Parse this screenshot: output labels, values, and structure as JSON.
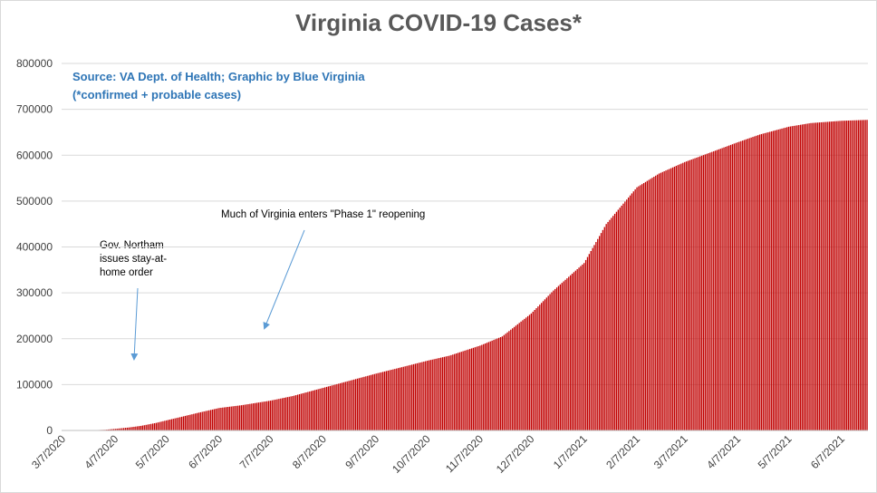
{
  "chart_data": {
    "type": "bar",
    "title": "Virginia COVID-19 Cases*",
    "source": "Source: VA Dept. of Health; Graphic by Blue Virginia",
    "note": "(*confirmed + probable cases)",
    "xlabel": "",
    "ylabel": "",
    "ylim": [
      0,
      800000
    ],
    "yticks": [
      0,
      100000,
      200000,
      300000,
      400000,
      500000,
      600000,
      700000,
      800000
    ],
    "xticks": [
      "3/7/2020",
      "4/7/2020",
      "5/7/2020",
      "6/7/2020",
      "7/7/2020",
      "8/7/2020",
      "9/7/2020",
      "10/7/2020",
      "11/7/2020",
      "12/7/2020",
      "1/7/2021",
      "2/7/2021",
      "3/7/2021",
      "4/7/2021",
      "5/7/2021",
      "6/7/2021"
    ],
    "x_start": "3/7/2020",
    "x_end": "6/22/2021",
    "grid": true,
    "legend": "none",
    "bar_color": "#c00000",
    "gap_color": "#ffffff",
    "series_points": [
      {
        "date": "3/7/2020",
        "value": 0
      },
      {
        "date": "3/20/2020",
        "value": 100
      },
      {
        "date": "4/1/2020",
        "value": 1500
      },
      {
        "date": "4/7/2020",
        "value": 3500
      },
      {
        "date": "4/15/2020",
        "value": 6500
      },
      {
        "date": "4/22/2020",
        "value": 10000
      },
      {
        "date": "5/1/2020",
        "value": 16500
      },
      {
        "date": "5/7/2020",
        "value": 22000
      },
      {
        "date": "5/15/2020",
        "value": 29000
      },
      {
        "date": "5/25/2020",
        "value": 38000
      },
      {
        "date": "6/7/2020",
        "value": 49000
      },
      {
        "date": "6/20/2020",
        "value": 55000
      },
      {
        "date": "7/7/2020",
        "value": 65000
      },
      {
        "date": "7/20/2020",
        "value": 75000
      },
      {
        "date": "8/7/2020",
        "value": 93000
      },
      {
        "date": "8/20/2020",
        "value": 106000
      },
      {
        "date": "9/7/2020",
        "value": 124000
      },
      {
        "date": "9/20/2020",
        "value": 136000
      },
      {
        "date": "10/7/2020",
        "value": 152000
      },
      {
        "date": "10/20/2020",
        "value": 163000
      },
      {
        "date": "11/7/2020",
        "value": 185000
      },
      {
        "date": "11/20/2020",
        "value": 205000
      },
      {
        "date": "12/7/2020",
        "value": 255000
      },
      {
        "date": "12/20/2020",
        "value": 305000
      },
      {
        "date": "1/7/2021",
        "value": 365000
      },
      {
        "date": "1/20/2021",
        "value": 450000
      },
      {
        "date": "2/7/2021",
        "value": 530000
      },
      {
        "date": "2/20/2021",
        "value": 560000
      },
      {
        "date": "3/7/2021",
        "value": 585000
      },
      {
        "date": "3/20/2021",
        "value": 603000
      },
      {
        "date": "4/7/2021",
        "value": 628000
      },
      {
        "date": "4/20/2021",
        "value": 645000
      },
      {
        "date": "5/7/2021",
        "value": 662000
      },
      {
        "date": "5/20/2021",
        "value": 670000
      },
      {
        "date": "6/7/2021",
        "value": 675000
      },
      {
        "date": "6/22/2021",
        "value": 677000
      }
    ],
    "annotations": [
      {
        "text": "Gov. Northam issues stay-at-home order",
        "date": "3/30/2020"
      },
      {
        "text": "Much of Virginia enters \"Phase 1\" reopening",
        "date": "5/15/2020"
      }
    ]
  }
}
